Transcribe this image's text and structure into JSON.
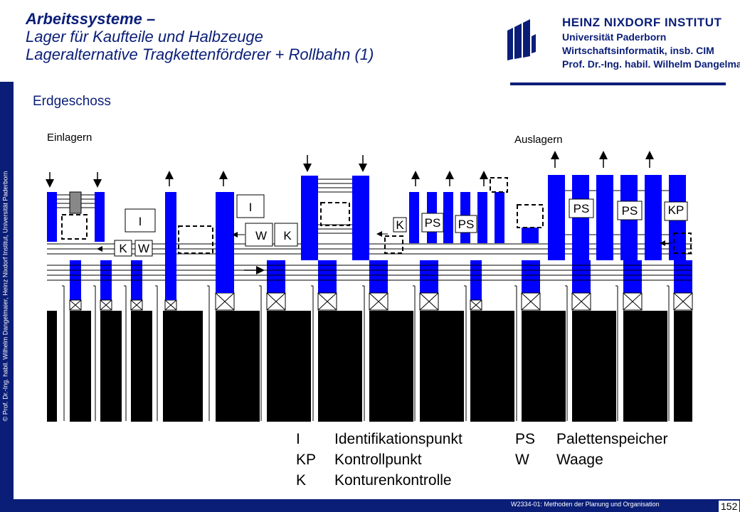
{
  "header": {
    "title_line1": "Arbeitssysteme –",
    "title_line2": "Lager für Kaufteile und Halbzeuge",
    "title_line3": "Lageralternative Tragkettenförderer + Rollbahn (1)"
  },
  "logo": {
    "line1": "HEINZ NIXDORF INSTITUT",
    "line2": "Universität Paderborn",
    "line3": "Wirtschaftsinformatik, insb. CIM",
    "line4": "Prof. Dr.-Ing. habil. Wilhelm Dangelmaier"
  },
  "sidebar_text": "© Prof. Dr.-Ing. habil. Wilhelm Dangelmaier, Heinz Nixdorf Institut, Universität Paderborn",
  "section_title": "Erdgeschoss",
  "diagram": {
    "einlagern": "Einlagern",
    "auslagern": "Auslagern",
    "box_labels": {
      "I": "I",
      "K": "K",
      "W": "W",
      "PS": "PS",
      "KP": "KP"
    }
  },
  "legend": [
    {
      "code": "I",
      "text": "Identifikationspunkt"
    },
    {
      "code": "KP",
      "text": "Kontrollpunkt"
    },
    {
      "code": "K",
      "text": "Konturenkontrolle"
    },
    {
      "code": "PS",
      "text": "Palettenspeicher"
    },
    {
      "code": "W",
      "text": "Waage"
    }
  ],
  "footer": {
    "course": "W2334-01: Methoden der Planung und Organisation",
    "page": "152"
  },
  "colors": {
    "accent": "#0a1e78",
    "conveyor": "#0000ff",
    "rack": "#000000"
  }
}
